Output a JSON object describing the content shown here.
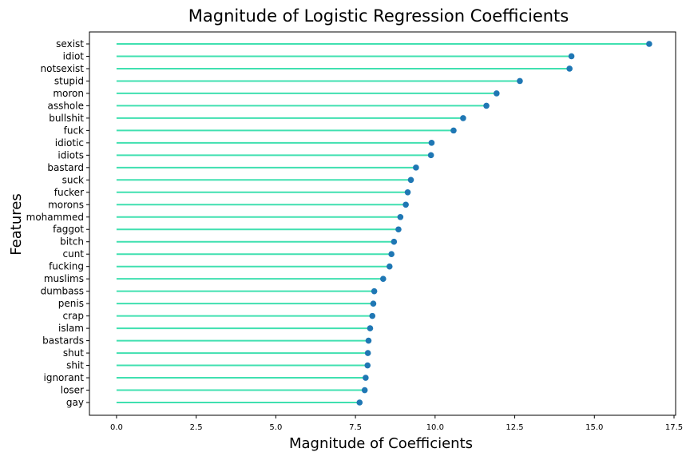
{
  "chart_data": {
    "type": "lollipop",
    "title": "Magnitude of Logistic Regression Coefficients",
    "xlabel": "Magnitude of Coefficients",
    "ylabel": "Features",
    "xlim": [
      -0.85,
      17.55
    ],
    "xticks": [
      0.0,
      2.5,
      5.0,
      7.5,
      10.0,
      12.5,
      15.0,
      17.5
    ],
    "xtick_labels": [
      "0.0",
      "2.5",
      "5.0",
      "7.5",
      "10.0",
      "12.5",
      "15.0",
      "17.5"
    ],
    "grid": false,
    "colors": {
      "stem": "#40e0b0",
      "marker": "#1f77b4"
    },
    "categories": [
      "sexist",
      "idiot",
      "notsexist",
      "stupid",
      "moron",
      "asshole",
      "bullshit",
      "fuck",
      "idiotic",
      "idiots",
      "bastard",
      "suck",
      "fucker",
      "morons",
      "mohammed",
      "faggot",
      "bitch",
      "cunt",
      "fucking",
      "muslims",
      "dumbass",
      "penis",
      "crap",
      "islam",
      "bastards",
      "shut",
      "shit",
      "ignorant",
      "loser",
      "gay"
    ],
    "values": [
      16.72,
      14.28,
      14.22,
      12.66,
      11.93,
      11.61,
      10.88,
      10.58,
      9.89,
      9.87,
      9.4,
      9.24,
      9.14,
      9.08,
      8.91,
      8.85,
      8.71,
      8.63,
      8.57,
      8.37,
      8.09,
      8.06,
      8.03,
      7.96,
      7.91,
      7.89,
      7.88,
      7.82,
      7.79,
      7.63
    ]
  }
}
